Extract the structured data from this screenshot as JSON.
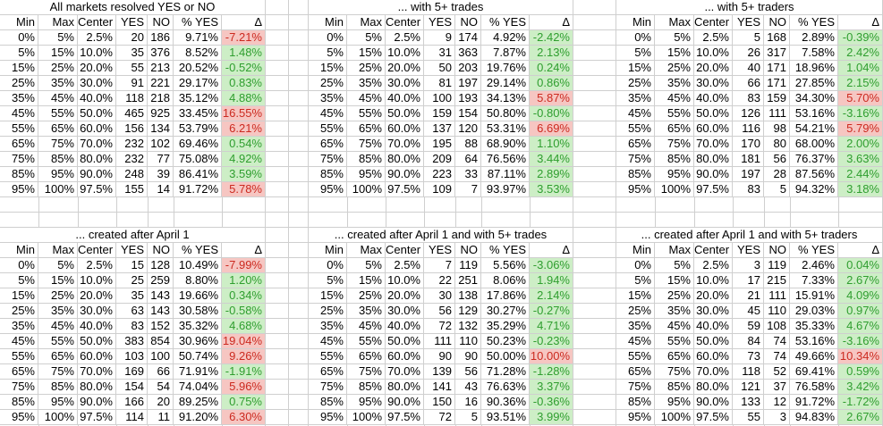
{
  "colors": {
    "gridline": "#cfcfcf",
    "delta_green_bg": "#cdeec6",
    "delta_green_text": "#2f9e2f",
    "delta_red_bg": "#f6c6c2",
    "delta_red_text": "#cc2a20",
    "text": "#000000",
    "background": "#ffffff"
  },
  "row_format": [
    "min",
    "max",
    "center",
    "yes",
    "no",
    "pct_yes",
    "delta",
    "delta_highlight"
  ],
  "chart_data": [
    {
      "type": "table",
      "title": "All markets resolved YES or NO",
      "columns": [
        "Min",
        "Max",
        "Center",
        "YES",
        "NO",
        "% YES",
        "Δ"
      ],
      "rows": [
        [
          "0%",
          "5%",
          "2.5%",
          20,
          186,
          "9.71%",
          "-7.21%",
          "red"
        ],
        [
          "5%",
          "15%",
          "10.0%",
          35,
          376,
          "8.52%",
          "1.48%",
          "green"
        ],
        [
          "15%",
          "25%",
          "20.0%",
          55,
          213,
          "20.52%",
          "-0.52%",
          "green"
        ],
        [
          "25%",
          "35%",
          "30.0%",
          91,
          221,
          "29.17%",
          "0.83%",
          "green"
        ],
        [
          "35%",
          "45%",
          "40.0%",
          118,
          218,
          "35.12%",
          "4.88%",
          "green"
        ],
        [
          "45%",
          "55%",
          "50.0%",
          465,
          925,
          "33.45%",
          "16.55%",
          "red"
        ],
        [
          "55%",
          "65%",
          "60.0%",
          156,
          134,
          "53.79%",
          "6.21%",
          "red"
        ],
        [
          "65%",
          "75%",
          "70.0%",
          232,
          102,
          "69.46%",
          "0.54%",
          "green"
        ],
        [
          "75%",
          "85%",
          "80.0%",
          232,
          77,
          "75.08%",
          "4.92%",
          "green"
        ],
        [
          "85%",
          "95%",
          "90.0%",
          248,
          39,
          "86.41%",
          "3.59%",
          "green"
        ],
        [
          "95%",
          "100%",
          "97.5%",
          155,
          14,
          "91.72%",
          "5.78%",
          "red"
        ]
      ]
    },
    {
      "type": "table",
      "title": "... with 5+ trades",
      "columns": [
        "Min",
        "Max",
        "Center",
        "YES",
        "NO",
        "% YES",
        "Δ"
      ],
      "rows": [
        [
          "0%",
          "5%",
          "2.5%",
          9,
          174,
          "4.92%",
          "-2.42%",
          "green"
        ],
        [
          "5%",
          "15%",
          "10.0%",
          31,
          363,
          "7.87%",
          "2.13%",
          "green"
        ],
        [
          "15%",
          "25%",
          "20.0%",
          50,
          203,
          "19.76%",
          "0.24%",
          "green"
        ],
        [
          "25%",
          "35%",
          "30.0%",
          81,
          197,
          "29.14%",
          "0.86%",
          "green"
        ],
        [
          "35%",
          "45%",
          "40.0%",
          100,
          193,
          "34.13%",
          "5.87%",
          "red"
        ],
        [
          "45%",
          "55%",
          "50.0%",
          159,
          154,
          "50.80%",
          "-0.80%",
          "green"
        ],
        [
          "55%",
          "65%",
          "60.0%",
          137,
          120,
          "53.31%",
          "6.69%",
          "red"
        ],
        [
          "65%",
          "75%",
          "70.0%",
          195,
          88,
          "68.90%",
          "1.10%",
          "green"
        ],
        [
          "75%",
          "85%",
          "80.0%",
          209,
          64,
          "76.56%",
          "3.44%",
          "green"
        ],
        [
          "85%",
          "95%",
          "90.0%",
          223,
          33,
          "87.11%",
          "2.89%",
          "green"
        ],
        [
          "95%",
          "100%",
          "97.5%",
          109,
          7,
          "93.97%",
          "3.53%",
          "green"
        ]
      ]
    },
    {
      "type": "table",
      "title": "... with 5+ traders",
      "columns": [
        "Min",
        "Max",
        "Center",
        "YES",
        "NO",
        "% YES",
        "Δ"
      ],
      "rows": [
        [
          "0%",
          "5%",
          "2.5%",
          5,
          168,
          "2.89%",
          "-0.39%",
          "green"
        ],
        [
          "5%",
          "15%",
          "10.0%",
          26,
          317,
          "7.58%",
          "2.42%",
          "green"
        ],
        [
          "15%",
          "25%",
          "20.0%",
          40,
          171,
          "18.96%",
          "1.04%",
          "green"
        ],
        [
          "25%",
          "35%",
          "30.0%",
          66,
          171,
          "27.85%",
          "2.15%",
          "green"
        ],
        [
          "35%",
          "45%",
          "40.0%",
          83,
          159,
          "34.30%",
          "5.70%",
          "red"
        ],
        [
          "45%",
          "55%",
          "50.0%",
          126,
          111,
          "53.16%",
          "-3.16%",
          "green"
        ],
        [
          "55%",
          "65%",
          "60.0%",
          116,
          98,
          "54.21%",
          "5.79%",
          "red"
        ],
        [
          "65%",
          "75%",
          "70.0%",
          170,
          80,
          "68.00%",
          "2.00%",
          "green"
        ],
        [
          "75%",
          "85%",
          "80.0%",
          181,
          56,
          "76.37%",
          "3.63%",
          "green"
        ],
        [
          "85%",
          "95%",
          "90.0%",
          197,
          28,
          "87.56%",
          "2.44%",
          "green"
        ],
        [
          "95%",
          "100%",
          "97.5%",
          83,
          5,
          "94.32%",
          "3.18%",
          "green"
        ]
      ]
    },
    {
      "type": "table",
      "title": "... created after April 1",
      "columns": [
        "Min",
        "Max",
        "Center",
        "YES",
        "NO",
        "% YES",
        "Δ"
      ],
      "rows": [
        [
          "0%",
          "5%",
          "2.5%",
          15,
          128,
          "10.49%",
          "-7.99%",
          "red"
        ],
        [
          "5%",
          "15%",
          "10.0%",
          25,
          259,
          "8.80%",
          "1.20%",
          "green"
        ],
        [
          "15%",
          "25%",
          "20.0%",
          35,
          143,
          "19.66%",
          "0.34%",
          "green"
        ],
        [
          "25%",
          "35%",
          "30.0%",
          63,
          143,
          "30.58%",
          "-0.58%",
          "green"
        ],
        [
          "35%",
          "45%",
          "40.0%",
          83,
          152,
          "35.32%",
          "4.68%",
          "green"
        ],
        [
          "45%",
          "55%",
          "50.0%",
          383,
          854,
          "30.96%",
          "19.04%",
          "red"
        ],
        [
          "55%",
          "65%",
          "60.0%",
          103,
          100,
          "50.74%",
          "9.26%",
          "red"
        ],
        [
          "65%",
          "75%",
          "70.0%",
          169,
          66,
          "71.91%",
          "-1.91%",
          "green"
        ],
        [
          "75%",
          "85%",
          "80.0%",
          154,
          54,
          "74.04%",
          "5.96%",
          "red"
        ],
        [
          "85%",
          "95%",
          "90.0%",
          166,
          20,
          "89.25%",
          "0.75%",
          "green"
        ],
        [
          "95%",
          "100%",
          "97.5%",
          114,
          11,
          "91.20%",
          "6.30%",
          "red"
        ]
      ]
    },
    {
      "type": "table",
      "title": "... created after April 1 and with 5+ trades",
      "columns": [
        "Min",
        "Max",
        "Center",
        "YES",
        "NO",
        "% YES",
        "Δ"
      ],
      "rows": [
        [
          "0%",
          "5%",
          "2.5%",
          7,
          119,
          "5.56%",
          "-3.06%",
          "green"
        ],
        [
          "5%",
          "15%",
          "10.0%",
          22,
          251,
          "8.06%",
          "1.94%",
          "green"
        ],
        [
          "15%",
          "25%",
          "20.0%",
          30,
          138,
          "17.86%",
          "2.14%",
          "green"
        ],
        [
          "25%",
          "35%",
          "30.0%",
          56,
          129,
          "30.27%",
          "-0.27%",
          "green"
        ],
        [
          "35%",
          "45%",
          "40.0%",
          72,
          132,
          "35.29%",
          "4.71%",
          "green"
        ],
        [
          "45%",
          "55%",
          "50.0%",
          111,
          110,
          "50.23%",
          "-0.23%",
          "green"
        ],
        [
          "55%",
          "65%",
          "60.0%",
          90,
          90,
          "50.00%",
          "10.00%",
          "red"
        ],
        [
          "65%",
          "75%",
          "70.0%",
          139,
          56,
          "71.28%",
          "-1.28%",
          "green"
        ],
        [
          "75%",
          "85%",
          "80.0%",
          141,
          43,
          "76.63%",
          "3.37%",
          "green"
        ],
        [
          "85%",
          "95%",
          "90.0%",
          150,
          16,
          "90.36%",
          "-0.36%",
          "green"
        ],
        [
          "95%",
          "100%",
          "97.5%",
          72,
          5,
          "93.51%",
          "3.99%",
          "green"
        ]
      ]
    },
    {
      "type": "table",
      "title": "... created after April 1 and with 5+ traders",
      "columns": [
        "Min",
        "Max",
        "Center",
        "YES",
        "NO",
        "% YES",
        "Δ"
      ],
      "rows": [
        [
          "0%",
          "5%",
          "2.5%",
          3,
          119,
          "2.46%",
          "0.04%",
          "green"
        ],
        [
          "5%",
          "15%",
          "10.0%",
          17,
          215,
          "7.33%",
          "2.67%",
          "green"
        ],
        [
          "15%",
          "25%",
          "20.0%",
          21,
          111,
          "15.91%",
          "4.09%",
          "green"
        ],
        [
          "25%",
          "35%",
          "30.0%",
          45,
          110,
          "29.03%",
          "0.97%",
          "green"
        ],
        [
          "35%",
          "45%",
          "40.0%",
          59,
          108,
          "35.33%",
          "4.67%",
          "green"
        ],
        [
          "45%",
          "55%",
          "50.0%",
          84,
          74,
          "53.16%",
          "-3.16%",
          "green"
        ],
        [
          "55%",
          "65%",
          "60.0%",
          73,
          74,
          "49.66%",
          "10.34%",
          "red"
        ],
        [
          "65%",
          "75%",
          "70.0%",
          118,
          52,
          "69.41%",
          "0.59%",
          "green"
        ],
        [
          "75%",
          "85%",
          "80.0%",
          121,
          37,
          "76.58%",
          "3.42%",
          "green"
        ],
        [
          "85%",
          "95%",
          "90.0%",
          133,
          12,
          "91.72%",
          "-1.72%",
          "green"
        ],
        [
          "95%",
          "100%",
          "97.5%",
          55,
          3,
          "94.83%",
          "2.67%",
          "green"
        ]
      ]
    }
  ]
}
